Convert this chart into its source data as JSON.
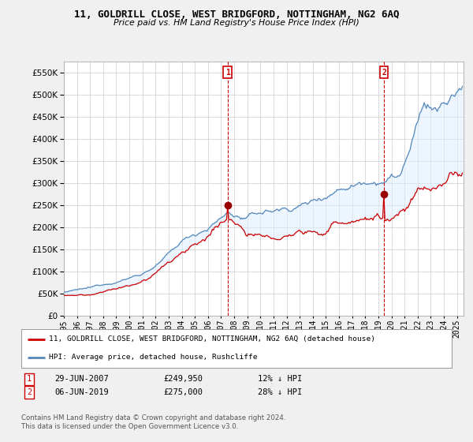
{
  "title": "11, GOLDRILL CLOSE, WEST BRIDGFORD, NOTTINGHAM, NG2 6AQ",
  "subtitle": "Price paid vs. HM Land Registry's House Price Index (HPI)",
  "ylim": [
    0,
    575000
  ],
  "yticks": [
    0,
    50000,
    100000,
    150000,
    200000,
    250000,
    300000,
    350000,
    400000,
    450000,
    500000,
    550000
  ],
  "xlim_start": 1995.0,
  "xlim_end": 2025.5,
  "sale1_date": 2007.5,
  "sale1_price": 249950,
  "sale2_date": 2019.43,
  "sale2_price": 275000,
  "legend_line1": "11, GOLDRILL CLOSE, WEST BRIDGFORD, NOTTINGHAM, NG2 6AQ (detached house)",
  "legend_line2": "HPI: Average price, detached house, Rushcliffe",
  "footer": "Contains HM Land Registry data © Crown copyright and database right 2024.\nThis data is licensed under the Open Government Licence v3.0.",
  "line_color_sold": "#cc0000",
  "line_color_hpi": "#5588bb",
  "fill_color_hpi": "#ddeeff",
  "background_color": "#f0f0f0",
  "plot_bg_color": "#ffffff",
  "grid_color": "#cccccc"
}
